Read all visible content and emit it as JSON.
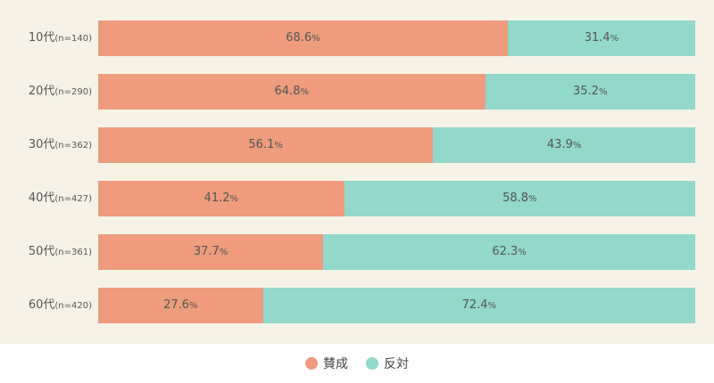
{
  "colors": {
    "background": "#f6f3e6",
    "agree": "#ee9b7e",
    "oppose": "#92d8cb"
  },
  "chart_data": {
    "type": "bar",
    "orientation": "horizontal",
    "stacked": true,
    "normalized_100": true,
    "unit": "%",
    "categories": [
      "10代",
      "20代",
      "30代",
      "40代",
      "50代",
      "60代"
    ],
    "category_samples": [
      "(n=140)",
      "(n=290)",
      "(n=362)",
      "(n=427)",
      "(n=361)",
      "(n=420)"
    ],
    "series": [
      {
        "name": "賛成",
        "color": "#ee9b7e",
        "values": [
          68.6,
          64.8,
          56.1,
          41.2,
          37.7,
          27.6
        ]
      },
      {
        "name": "反対",
        "color": "#92d8cb",
        "values": [
          31.4,
          35.2,
          43.9,
          58.8,
          62.3,
          72.4
        ]
      }
    ],
    "xlim": [
      0,
      100
    ],
    "legend_position": "bottom-center",
    "grid": false
  }
}
